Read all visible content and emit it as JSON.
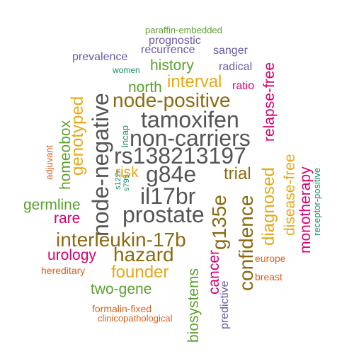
{
  "colors": {
    "gray": "#555555",
    "olive": "#8B6A10",
    "gold": "#E6A817",
    "green": "#5BA02E",
    "purple": "#6A5AA8",
    "magenta": "#D6006E",
    "teal": "#1B8A6B",
    "orange": "#D95F1A"
  },
  "words": [
    {
      "text": "paraffin-embedded",
      "color": "green"
    },
    {
      "text": "prognostic",
      "color": "purple"
    },
    {
      "text": "prevalence",
      "color": "purple"
    },
    {
      "text": "recurrence",
      "color": "purple"
    },
    {
      "text": "sanger",
      "color": "purple"
    },
    {
      "text": "women",
      "color": "teal"
    },
    {
      "text": "history",
      "color": "green"
    },
    {
      "text": "radical",
      "color": "purple"
    },
    {
      "text": "node-negative",
      "color": "gray"
    },
    {
      "text": "interval",
      "color": "gold"
    },
    {
      "text": "north",
      "color": "green"
    },
    {
      "text": "ratio",
      "color": "magenta"
    },
    {
      "text": "relapse-free",
      "color": "magenta"
    },
    {
      "text": "node-positive",
      "color": "olive"
    },
    {
      "text": "homeobox",
      "color": "green"
    },
    {
      "text": "genotyped",
      "color": "gold"
    },
    {
      "text": "lncap",
      "color": "teal"
    },
    {
      "text": "tamoxifen",
      "color": "gray"
    },
    {
      "text": "non-carriers",
      "color": "gray"
    },
    {
      "text": "adjuvant",
      "color": "orange"
    },
    {
      "text": "rs138213197",
      "color": "gray"
    },
    {
      "text": "disease-free",
      "color": "gold"
    },
    {
      "text": "risk",
      "color": "gold"
    },
    {
      "text": "g84e",
      "color": "gray"
    },
    {
      "text": "trial",
      "color": "olive"
    },
    {
      "text": "diagnosed",
      "color": "gold"
    },
    {
      "text": "receptor-positive",
      "color": "teal"
    },
    {
      "text": "monotherapy",
      "color": "magenta"
    },
    {
      "text": "s122r",
      "color": "teal"
    },
    {
      "text": "s795",
      "color": "teal"
    },
    {
      "text": "il17br",
      "color": "gray"
    },
    {
      "text": "g135e",
      "color": "olive"
    },
    {
      "text": "germline",
      "color": "green"
    },
    {
      "text": "prostate",
      "color": "gray"
    },
    {
      "text": "confidence",
      "color": "olive"
    },
    {
      "text": "rare",
      "color": "magenta"
    },
    {
      "text": "interleukin-17b",
      "color": "olive"
    },
    {
      "text": "urology",
      "color": "magenta"
    },
    {
      "text": "hazard",
      "color": "olive"
    },
    {
      "text": "europe",
      "color": "orange"
    },
    {
      "text": "hereditary",
      "color": "orange"
    },
    {
      "text": "founder",
      "color": "gold"
    },
    {
      "text": "cancer",
      "color": "magenta"
    },
    {
      "text": "breast",
      "color": "orange"
    },
    {
      "text": "biosystems",
      "color": "green"
    },
    {
      "text": "two-gene",
      "color": "green"
    },
    {
      "text": "predictive",
      "color": "purple"
    },
    {
      "text": "formalin-fixed",
      "color": "orange"
    },
    {
      "text": "clinicopathological",
      "color": "orange"
    }
  ]
}
